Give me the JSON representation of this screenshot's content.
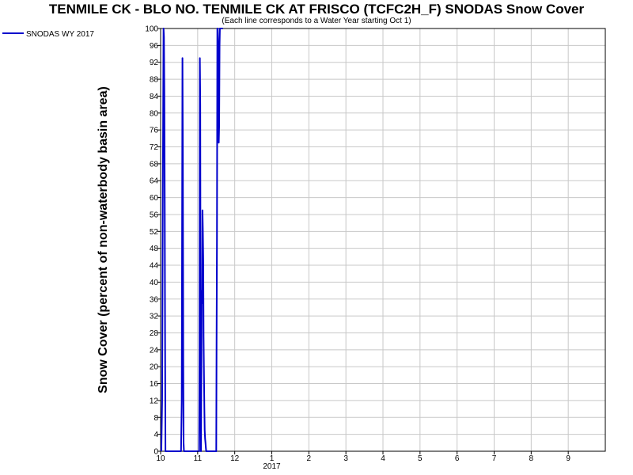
{
  "chart_data": {
    "type": "line",
    "title": "TENMILE CK - BLO NO. TENMILE CK AT FRISCO (TCFC2H_F) SNODAS Snow Cover",
    "subtitle": "(Each line corresponds to a Water Year starting Oct 1)",
    "ylabel": "Snow Cover (percent of non-waterbody basin area)",
    "xlabel": "",
    "ylim": [
      0,
      100
    ],
    "yticks": [
      0,
      4,
      8,
      12,
      16,
      20,
      24,
      28,
      32,
      36,
      40,
      44,
      48,
      52,
      56,
      60,
      64,
      68,
      72,
      76,
      80,
      84,
      88,
      92,
      96,
      100
    ],
    "xlim": [
      0,
      12
    ],
    "xticks": [
      {
        "pos": 0,
        "label": "10"
      },
      {
        "pos": 1,
        "label": "11"
      },
      {
        "pos": 2,
        "label": "12"
      },
      {
        "pos": 3,
        "label": "1"
      },
      {
        "pos": 4,
        "label": "2"
      },
      {
        "pos": 5,
        "label": "3"
      },
      {
        "pos": 6,
        "label": "4"
      },
      {
        "pos": 7,
        "label": "5"
      },
      {
        "pos": 8,
        "label": "6"
      },
      {
        "pos": 9,
        "label": "7"
      },
      {
        "pos": 10,
        "label": "8"
      },
      {
        "pos": 11,
        "label": "9"
      }
    ],
    "year_label": {
      "pos": 3,
      "label": "2017"
    },
    "grid": true,
    "legend_position": "top-left",
    "series": [
      {
        "name": "SNODAS WY 2017",
        "color": "#0000cc",
        "x": [
          0.02,
          0.04,
          0.06,
          0.08,
          0.09,
          0.1,
          0.11,
          0.12,
          0.13,
          0.14,
          0.15,
          0.16,
          0.17,
          0.18,
          0.2,
          0.22,
          0.24,
          0.3,
          0.4,
          0.5,
          0.55,
          0.57,
          0.58,
          0.59,
          0.6,
          0.61,
          0.62,
          0.63,
          0.64,
          0.66,
          0.68,
          0.7,
          0.8,
          0.9,
          1.0,
          1.02,
          1.03,
          1.04,
          1.05,
          1.06,
          1.07,
          1.08,
          1.09,
          1.1,
          1.11,
          1.12,
          1.13,
          1.14,
          1.15,
          1.16,
          1.17,
          1.18,
          1.19,
          1.2,
          1.21,
          1.22,
          1.23,
          1.24,
          1.26,
          1.28,
          1.3,
          1.32,
          1.36,
          1.4,
          1.45,
          1.48,
          1.5,
          1.51,
          1.52,
          1.53,
          1.54,
          1.55,
          1.56,
          1.57,
          1.58,
          1.59,
          1.6,
          1.61,
          1.62,
          1.63,
          1.64,
          1.66,
          1.68
        ],
        "values": [
          0,
          12,
          62,
          100,
          98,
          85,
          58,
          28,
          0,
          0,
          0,
          0,
          0,
          0,
          0,
          0,
          0,
          0,
          0,
          0,
          0,
          12,
          58,
          93,
          70,
          22,
          2,
          0,
          0,
          0,
          0,
          0,
          0,
          0,
          0,
          0,
          0,
          0,
          23,
          93,
          82,
          15,
          0,
          20,
          38,
          35,
          57,
          52,
          45,
          27,
          18,
          10,
          5,
          3,
          2,
          1,
          0,
          0,
          0,
          0,
          0,
          0,
          0,
          0,
          0,
          0,
          0,
          25,
          50,
          100,
          100,
          97,
          90,
          73,
          77,
          96,
          100,
          100,
          100,
          100,
          100,
          100,
          100
        ]
      }
    ]
  }
}
